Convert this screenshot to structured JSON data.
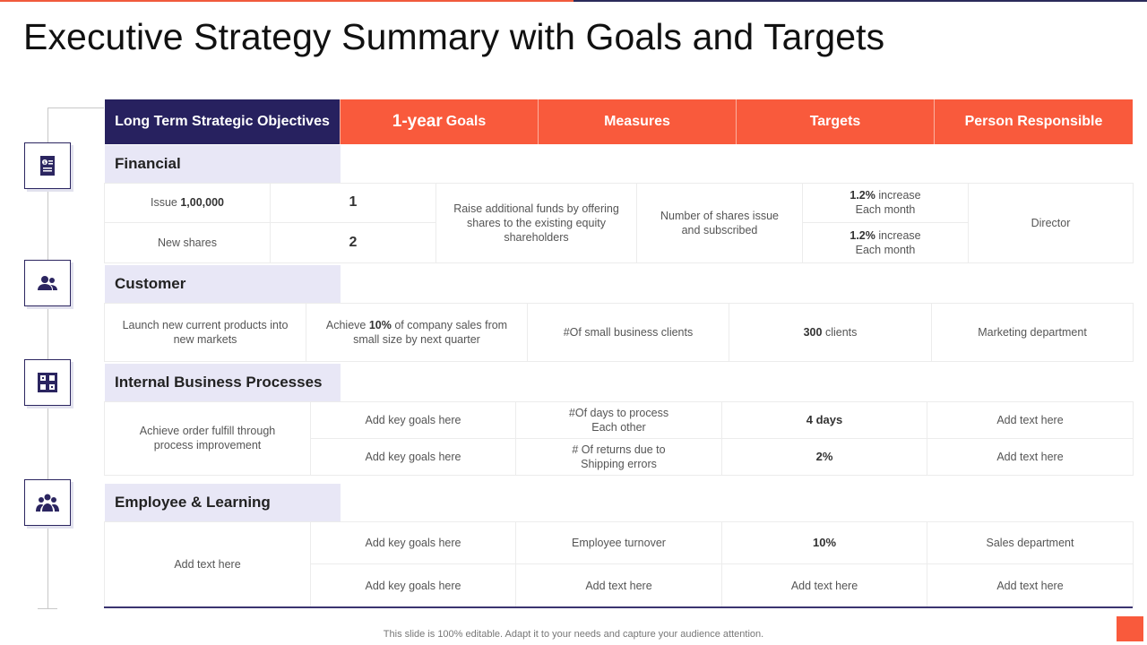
{
  "title": "Executive Strategy Summary with Goals and Targets",
  "headers": {
    "objectives": "Long Term Strategic Objectives",
    "goals_big": "1-year",
    "goals_rest": "Goals",
    "measures": "Measures",
    "targets": "Targets",
    "person": "Person Responsible"
  },
  "financial": {
    "label": "Financial",
    "row1_obj_pre": "Issue ",
    "row1_obj_bold": "1,00,000",
    "row2_obj": "New shares",
    "row1_goal": "1",
    "row2_goal": "2",
    "measure": "Raise additional funds by offering shares to the existing  equity shareholders",
    "target_desc": "Number of shares issue and subscribed",
    "t1_bold": "1.2%",
    "t1_rest": " increase Each month",
    "t2_bold": "1.2%",
    "t2_rest": " increase Each month",
    "person": "Director"
  },
  "customer": {
    "label": "Customer",
    "objective": "Launch new current products into new markets",
    "goal_pre": "Achieve ",
    "goal_bold": "10%",
    "goal_rest": " of company sales from small size by next quarter",
    "measure": "#Of small business clients",
    "target_bold": "300",
    "target_rest": " clients",
    "person": "Marketing department"
  },
  "internal": {
    "label": "Internal Business Processes",
    "objective": "Achieve order fulfill through process improvement",
    "rows": [
      {
        "goal": "Add key goals here",
        "measure": "#Of days to process Each other",
        "target": "4 days",
        "person": "Add text here"
      },
      {
        "goal": "Add key goals here",
        "measure": "# Of returns due to Shipping errors",
        "target": "2%",
        "person": "Add text here"
      }
    ]
  },
  "employee": {
    "label": "Employee & Learning",
    "objective": "Add text here",
    "rows": [
      {
        "goal": "Add key goals here",
        "measure": "Employee turnover",
        "target": "10%",
        "person": "Sales department"
      },
      {
        "goal": "Add key goals here",
        "measure": "Add text here",
        "target": "Add text here",
        "person": "Add text here"
      }
    ]
  },
  "icons": [
    "finance-document-icon",
    "customer-users-icon",
    "process-building-icon",
    "employee-group-icon"
  ],
  "footer": "This slide is 100% editable. Adapt it to your needs and capture your audience attention.",
  "colors": {
    "accent": "#f95a3c",
    "navy": "#27215f",
    "section_bg": "#e8e7f6"
  }
}
